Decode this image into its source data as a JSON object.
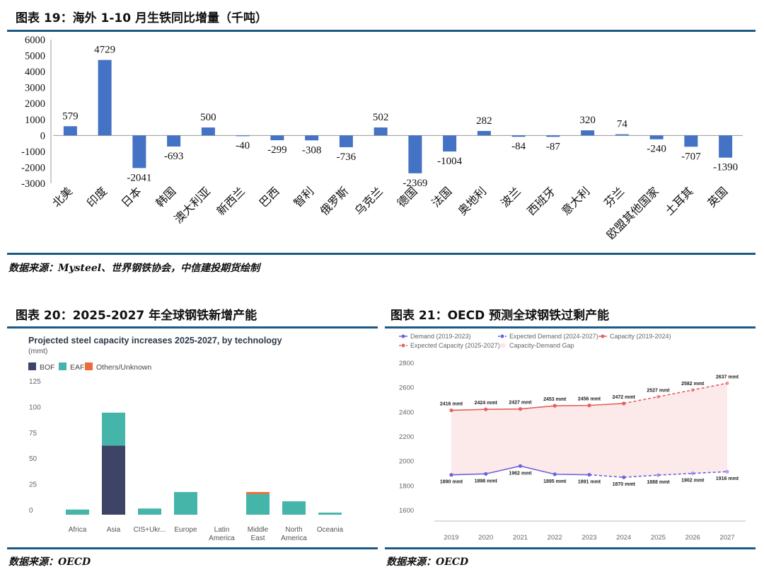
{
  "fig19": {
    "title": "图表 19：海外 1-10 月生铁同比增量（千吨）",
    "source": "数据来源：Mysteel、世界钢铁协会，中信建投期货绘制"
  },
  "fig20": {
    "title": "图表 20：2025-2027 年全球钢铁新增产能",
    "source": "数据来源：OECD"
  },
  "fig21": {
    "title": "图表 21：OECD 预测全球钢铁过剩产能",
    "source": "数据来源：OECD"
  },
  "colors": {
    "bar19": "#4472c4",
    "bof": "#3d4466",
    "eaf": "#45b5aa",
    "others": "#ec6b3c",
    "demand": "#6b63d9",
    "capacity": "#e46060",
    "gap": "#fbe5e5",
    "rule": "#1d5a87"
  },
  "chart_data": [
    {
      "type": "bar",
      "categories": [
        "北美",
        "印度",
        "日本",
        "韩国",
        "澳大利亚",
        "新西兰",
        "巴西",
        "智利",
        "俄罗斯",
        "乌克兰",
        "德国",
        "法国",
        "奥地利",
        "波兰",
        "西班牙",
        "意大利",
        "芬兰",
        "欧盟其他国家",
        "土耳其",
        "英国"
      ],
      "values": [
        579,
        4729,
        -2041,
        -693,
        500,
        -40,
        -299,
        -308,
        -736,
        502,
        -2369,
        -1004,
        282,
        -84,
        -87,
        320,
        74,
        -240,
        -707,
        -1390
      ],
      "data_labels": [
        "579",
        "4729",
        "-2041",
        "-693",
        "500",
        "-40",
        "-299",
        "-308",
        "-736",
        "502",
        "-2369",
        "-1004",
        "282",
        "-84",
        "-87",
        "320",
        "74",
        "-240",
        "-707",
        "-1390"
      ],
      "yticks": [
        "6000",
        "5000",
        "4000",
        "3000",
        "2000",
        "1000",
        "0",
        "-1000",
        "-2000",
        "-3000"
      ],
      "ylim": [
        -3000,
        6000
      ],
      "grid": false
    },
    {
      "type": "bar",
      "stacked": true,
      "title": "Projected steel capacity increases 2025-2027, by technology",
      "subtitle": "(mmt)",
      "categories": [
        "Africa",
        "Asia",
        "CIS+Ukr...",
        "Europe",
        "Latin America",
        "Middle East",
        "North America",
        "Oceania"
      ],
      "series": [
        {
          "name": "BOF",
          "values": [
            0,
            67,
            0,
            0,
            0,
            0,
            0,
            0
          ]
        },
        {
          "name": "EAF",
          "values": [
            5,
            32,
            6,
            22,
            0,
            20,
            13,
            2
          ]
        },
        {
          "name": "Others/Unknown",
          "values": [
            0,
            0,
            0,
            0,
            0,
            2,
            0,
            0
          ]
        }
      ],
      "yticks": [
        "125",
        "100",
        "75",
        "50",
        "25",
        "0"
      ],
      "ylim": [
        0,
        125
      ],
      "grid": false,
      "legend_position": "top-left"
    },
    {
      "type": "line",
      "x": [
        "2019",
        "2020",
        "2021",
        "2022",
        "2023",
        "2024",
        "2025",
        "2026",
        "2027"
      ],
      "series": [
        {
          "name": "Demand (2019-2023)",
          "values": [
            1890,
            1898,
            1962,
            1895,
            1891,
            null,
            null,
            null,
            null
          ]
        },
        {
          "name": "Expected Demand (2024-2027)",
          "values": [
            null,
            null,
            null,
            null,
            1891,
            1870,
            1888,
            1902,
            1916
          ]
        },
        {
          "name": "Capacity (2019-2024)",
          "values": [
            2416,
            2424,
            2427,
            2453,
            2456,
            2472,
            null,
            null,
            null
          ]
        },
        {
          "name": "Expected Capacity (2025-2027)",
          "values": [
            null,
            null,
            null,
            null,
            null,
            2472,
            2527,
            2582,
            2637
          ]
        },
        {
          "name": "Capacity-Demand Gap"
        }
      ],
      "demand_labels": [
        "1890 mmt",
        "1898 mmt",
        "1962 mmt",
        "1895 mmt",
        "1891 mmt",
        "1870 mmt",
        "1888 mmt",
        "1902 mmt",
        "1916 mmt"
      ],
      "capacity_labels": [
        "2416 mmt",
        "2424 mmt",
        "2427 mmt",
        "2453 mmt",
        "2456 mmt",
        "2472 mmt",
        "2527 mmt",
        "2582 mmt",
        "2637 mmt"
      ],
      "yticks": [
        "2800",
        "2600",
        "2400",
        "2200",
        "2000",
        "1800",
        "1600"
      ],
      "ylim": [
        1500,
        2850
      ],
      "grid": false,
      "legend_position": "top"
    }
  ]
}
